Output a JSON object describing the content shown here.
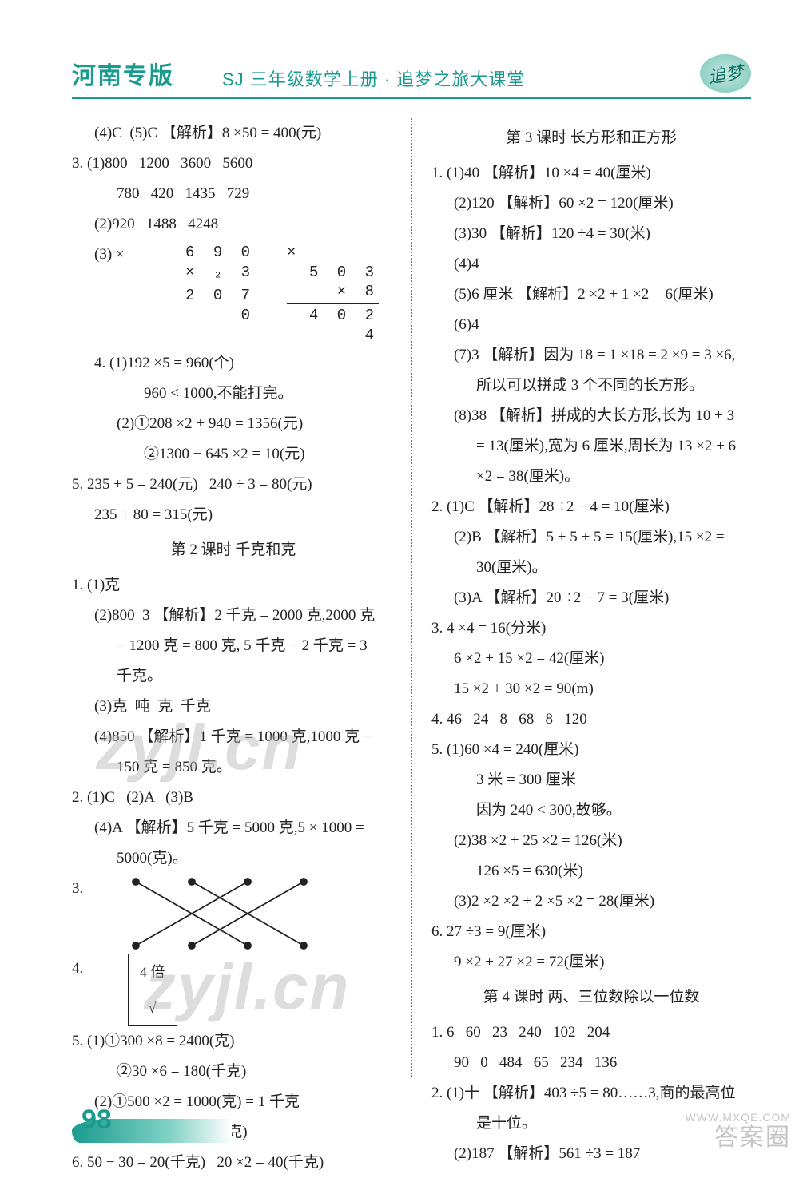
{
  "header": {
    "title": "河南专版",
    "subtitle": "SJ 三年级数学上册 · 追梦之旅大课堂",
    "logo_text": "追梦"
  },
  "colors": {
    "accent": "#1a9b8e",
    "text": "#222222",
    "background": "#ffffff",
    "watermark": "rgba(180,180,180,0.45)"
  },
  "page_number": "98",
  "watermarks": [
    "zyjl.cn",
    "zyjl.cn"
  ],
  "corner": {
    "brand": "答案圈",
    "url": "WWW.MXQE.COM"
  },
  "left_column": [
    {
      "cls": "indent1",
      "t": "(4)C  (5)C 【解析】8 ×50 = 400(元)"
    },
    {
      "cls": "",
      "t": "3. (1)800   1200   3600   5600"
    },
    {
      "cls": "indent2",
      "t": "780   420   1435   729"
    },
    {
      "cls": "indent1",
      "t": "(2)920   1488   4248"
    },
    {
      "type": "mul",
      "label": "(3) ×",
      "blocks": [
        {
          "rows": [
            "6 9 0",
            "×  ₂ 3"
          ],
          "result": "2 0 7 0"
        },
        {
          "prefix": "×",
          "rows": [
            "5 0 3",
            "×    8"
          ],
          "result": "4 0 2 4"
        }
      ]
    },
    {
      "cls": "indent1",
      "t": "4. (1)192 ×5 = 960(个)"
    },
    {
      "cls": "indent3",
      "t": "960 < 1000,不能打完。"
    },
    {
      "cls": "indent2",
      "t": "(2)①208 ×2 + 940 = 1356(元)"
    },
    {
      "cls": "indent3",
      "t": "②1300 − 645 ×2 = 10(元)"
    },
    {
      "cls": "",
      "t": "5. 235 + 5 = 240(元)   240 ÷ 3 = 80(元)"
    },
    {
      "cls": "indent1",
      "t": "235 + 80 = 315(元)"
    },
    {
      "type": "section",
      "t": "第 2 课时  千克和克"
    },
    {
      "cls": "",
      "t": "1. (1)克"
    },
    {
      "cls": "indent1",
      "t": "(2)800  3 【解析】2 千克 = 2000 克,2000 克"
    },
    {
      "cls": "indent2",
      "t": "− 1200 克 = 800 克, 5 千克 − 2 千克 = 3"
    },
    {
      "cls": "indent2",
      "t": "千克。"
    },
    {
      "cls": "indent1",
      "t": "(3)克  吨  克  千克"
    },
    {
      "cls": "indent1",
      "t": "(4)850 【解析】1 千克 = 1000 克,1000 克 −"
    },
    {
      "cls": "indent2",
      "t": "150 克 = 850 克。"
    },
    {
      "cls": "",
      "t": "2. (1)C   (2)A   (3)B"
    },
    {
      "cls": "indent1",
      "t": "(4)A 【解析】5 千克 = 5000 克,5 × 1000 ="
    },
    {
      "cls": "indent2",
      "t": "5000(克)。"
    },
    {
      "type": "match",
      "label": "3."
    },
    {
      "type": "box",
      "label": "4.",
      "cells": [
        "4 倍",
        "√"
      ]
    },
    {
      "cls": "",
      "t": "5. (1)①300 ×8 = 2400(克)"
    },
    {
      "cls": "indent2",
      "t": "②30 ×6 = 180(千克)"
    },
    {
      "cls": "indent1",
      "t": "(2)①500 ×2 = 1000(克) = 1 千克"
    },
    {
      "cls": "indent2",
      "t": "②2 ×2 + 2 = 6(千克)"
    },
    {
      "cls": "",
      "t": "6. 50 − 30 = 20(千克)   20 ×2 = 40(千克)"
    }
  ],
  "right_column": [
    {
      "type": "section",
      "t": "第 3 课时  长方形和正方形"
    },
    {
      "cls": "",
      "t": "1. (1)40 【解析】10 ×4 = 40(厘米)"
    },
    {
      "cls": "indent1",
      "t": "(2)120 【解析】60 ×2 = 120(厘米)"
    },
    {
      "cls": "indent1",
      "t": "(3)30 【解析】120 ÷4 = 30(米)"
    },
    {
      "cls": "indent1",
      "t": "(4)4"
    },
    {
      "cls": "indent1",
      "t": "(5)6 厘米 【解析】2 ×2 + 1 ×2 = 6(厘米)"
    },
    {
      "cls": "indent1",
      "t": "(6)4"
    },
    {
      "cls": "indent1",
      "t": "(7)3 【解析】因为 18 = 1 ×18 = 2 ×9 = 3 ×6,"
    },
    {
      "cls": "indent2",
      "t": "所以可以拼成 3 个不同的长方形。"
    },
    {
      "cls": "indent1",
      "t": "(8)38 【解析】拼成的大长方形,长为 10 + 3"
    },
    {
      "cls": "indent2",
      "t": "= 13(厘米),宽为 6 厘米,周长为 13 ×2 + 6"
    },
    {
      "cls": "indent2",
      "t": "×2 = 38(厘米)。"
    },
    {
      "cls": "",
      "t": "2. (1)C 【解析】28 ÷2 − 4 = 10(厘米)"
    },
    {
      "cls": "indent1",
      "t": "(2)B 【解析】5 + 5 + 5 = 15(厘米),15 ×2 ="
    },
    {
      "cls": "indent2",
      "t": "30(厘米)。"
    },
    {
      "cls": "indent1",
      "t": "(3)A 【解析】20 ÷2 − 7 = 3(厘米)"
    },
    {
      "cls": "",
      "t": "3. 4 ×4 = 16(分米)"
    },
    {
      "cls": "indent1",
      "t": "6 ×2 + 15 ×2 = 42(厘米)"
    },
    {
      "cls": "indent1",
      "t": "15 ×2 + 30 ×2 = 90(m)"
    },
    {
      "cls": "",
      "t": "4. 46   24   8   68   8   120"
    },
    {
      "cls": "",
      "t": "5. (1)60 ×4 = 240(厘米)"
    },
    {
      "cls": "indent2",
      "t": "3 米 = 300 厘米"
    },
    {
      "cls": "indent2",
      "t": "因为 240 < 300,故够。"
    },
    {
      "cls": "indent1",
      "t": "(2)38 ×2 + 25 ×2 = 126(米)"
    },
    {
      "cls": "indent2",
      "t": "126 ×5 = 630(米)"
    },
    {
      "cls": "indent1",
      "t": "(3)2 ×2 ×2 + 2 ×5 ×2 = 28(厘米)"
    },
    {
      "cls": "",
      "t": "6. 27 ÷3 = 9(厘米)"
    },
    {
      "cls": "indent1",
      "t": "9 ×2 + 27 ×2 = 72(厘米)"
    },
    {
      "type": "section",
      "t": "第 4 课时  两、三位数除以一位数"
    },
    {
      "cls": "",
      "t": "1. 6   60   23   240   102   204"
    },
    {
      "cls": "indent1",
      "t": "90   0   484   65   234   136"
    },
    {
      "cls": "",
      "t": "2. (1)十 【解析】403 ÷5 = 80……3,商的最高位"
    },
    {
      "cls": "indent2",
      "t": "是十位。"
    },
    {
      "cls": "indent1",
      "t": "(2)187 【解析】561 ÷3 = 187"
    }
  ]
}
